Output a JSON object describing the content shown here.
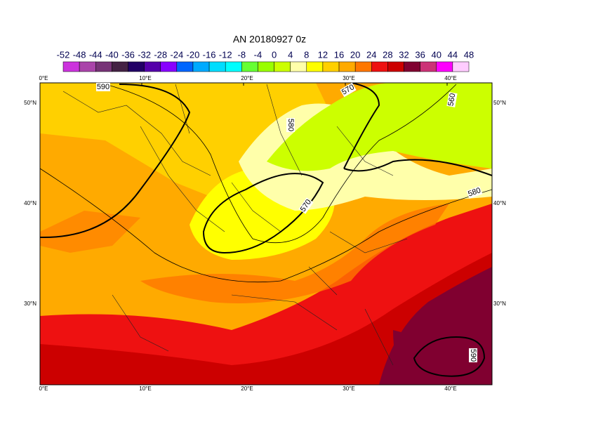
{
  "title": "AN  20180927 0z",
  "colorbar": {
    "labels": [
      "-52",
      "-48",
      "-44",
      "-40",
      "-36",
      "-32",
      "-28",
      "-24",
      "-20",
      "-16",
      "-12",
      "-8",
      "-4",
      "0",
      "4",
      "8",
      "12",
      "16",
      "20",
      "24",
      "28",
      "32",
      "36",
      "40",
      "44",
      "48"
    ],
    "colors": [
      "#cc33dd",
      "#aa44aa",
      "#773377",
      "#442244",
      "#220066",
      "#5500aa",
      "#8800ff",
      "#0066ff",
      "#00aaff",
      "#00ddff",
      "#00ffff",
      "#66ff33",
      "#99ff00",
      "#ccff00",
      "#ffffaa",
      "#ffff00",
      "#ffd000",
      "#ffaa00",
      "#ff7700",
      "#ee1111",
      "#cc0000",
      "#800030",
      "#cc3377",
      "#ff00ff",
      "#ffccff"
    ]
  },
  "map": {
    "lon_labels": [
      "0°E",
      "10°E",
      "20°E",
      "30°E",
      "40°E"
    ],
    "lat_labels": [
      "50°N",
      "40°N",
      "30°N"
    ],
    "contour_labels": [
      "590",
      "580",
      "570",
      "570",
      "580",
      "560",
      "590"
    ]
  }
}
